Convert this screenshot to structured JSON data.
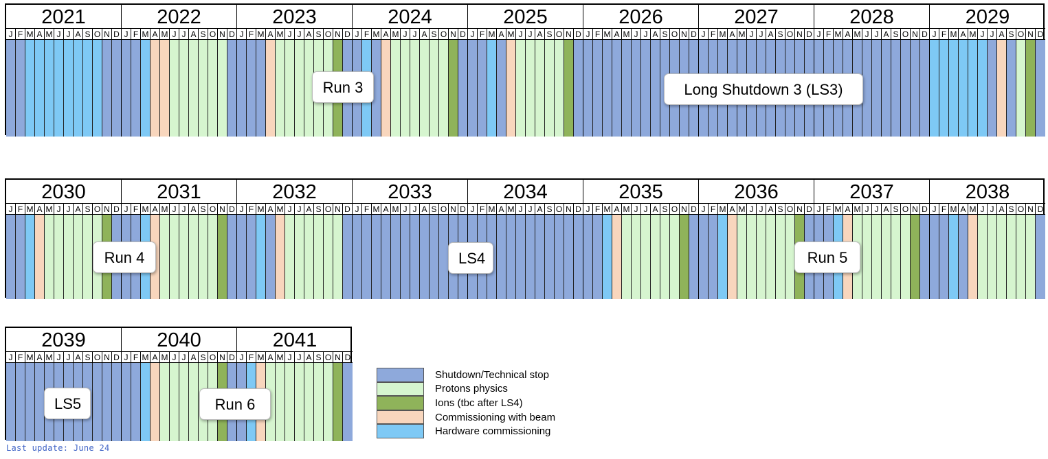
{
  "colors": {
    "S": "#8ea9db",
    "P": "#d6f5cf",
    "I": "#8fb35a",
    "C": "#f8d6bd",
    "H": "#7ec9f5"
  },
  "month_letters": [
    "J",
    "F",
    "M",
    "A",
    "M",
    "J",
    "J",
    "A",
    "S",
    "O",
    "N",
    "D"
  ],
  "rows": [
    {
      "years": [
        {
          "year": "2021",
          "months": "SSHHHHHHHHSS"
        },
        {
          "year": "2022",
          "months": "SSHCCPPPPPPS"
        },
        {
          "year": "2023",
          "months": "SSSCPPPPPPIS"
        },
        {
          "year": "2024",
          "months": "SHSCPPPPPPIS"
        },
        {
          "year": "2025",
          "months": "SSHSCPPPPPIS"
        },
        {
          "year": "2026",
          "months": "SSSSSSSSSSSS"
        },
        {
          "year": "2027",
          "months": "SSSSSSSSSSSS"
        },
        {
          "year": "2028",
          "months": "SSSSSSSSSSSS"
        },
        {
          "year": "2029",
          "months": "HHHHHHSCSPIS"
        }
      ],
      "labels": [
        {
          "text": "Run 3"
        },
        {
          "text": "Long Shutdown 3 (LS3)"
        }
      ]
    },
    {
      "years": [
        {
          "year": "2030",
          "months": "SSHCPPPPPPIS"
        },
        {
          "year": "2031",
          "months": "SSHCPPPPPPIS"
        },
        {
          "year": "2032",
          "months": "SSHSCPPPPPPS"
        },
        {
          "year": "2033",
          "months": "SSSSSSSSSSSS"
        },
        {
          "year": "2034",
          "months": "SSSSSSSSSSSS"
        },
        {
          "year": "2035",
          "months": "SSHCPPPPPPIS"
        },
        {
          "year": "2036",
          "months": "SSHCPPPPPPIS"
        },
        {
          "year": "2037",
          "months": "SSHCPPPPPPIS"
        },
        {
          "year": "2038",
          "months": "SSHSCPPPPPPS"
        }
      ],
      "labels": [
        {
          "text": "Run 4"
        },
        {
          "text": "LS4"
        },
        {
          "text": "Run 5"
        }
      ]
    },
    {
      "years": [
        {
          "year": "2039",
          "months": "SSSSSSSSSSSS"
        },
        {
          "year": "2040",
          "months": "SSHCPPPPPPIS"
        },
        {
          "year": "2041",
          "months": "SHCPPPPPPPIS"
        }
      ],
      "labels": [
        {
          "text": "LS5"
        },
        {
          "text": "Run 6"
        }
      ]
    }
  ],
  "legend": [
    {
      "key": "S",
      "label": "Shutdown/Technical stop"
    },
    {
      "key": "P",
      "label": "Protons physics"
    },
    {
      "key": "I",
      "label": "Ions (tbc after LS4)"
    },
    {
      "key": "C",
      "label": "Commissioning with beam"
    },
    {
      "key": "H",
      "label": "Hardware commissioning"
    }
  ],
  "footnote": "Last update: June 24"
}
